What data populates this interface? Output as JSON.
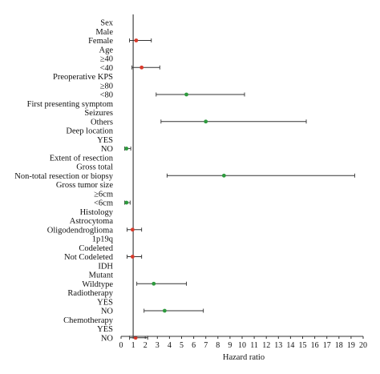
{
  "chart_data": {
    "type": "forest",
    "xlabel": "Hazard ratio",
    "xlim": [
      0,
      20
    ],
    "xticks": [
      0,
      1,
      2,
      3,
      4,
      5,
      6,
      7,
      8,
      9,
      10,
      11,
      12,
      13,
      14,
      15,
      16,
      17,
      18,
      19,
      20
    ],
    "reference_line": 1,
    "colors": {
      "significant": "#2e9a3e",
      "nonsignificant": "#d93a2b",
      "whisker": "#333333"
    },
    "rows": [
      {
        "label": "Sex"
      },
      {
        "label": "Male"
      },
      {
        "label": "Female",
        "hr": 1.25,
        "lo": 0.7,
        "hi": 2.5,
        "color": "nonsignificant"
      },
      {
        "label": "Age"
      },
      {
        "label": "≥40"
      },
      {
        "label": "<40",
        "hr": 1.7,
        "lo": 0.9,
        "hi": 3.2,
        "color": "nonsignificant"
      },
      {
        "label": "Preoperative KPS"
      },
      {
        "label": "≥80"
      },
      {
        "label": "<80",
        "hr": 5.4,
        "lo": 2.9,
        "hi": 10.2,
        "color": "significant"
      },
      {
        "label": "First presenting symptom"
      },
      {
        "label": "Seizures"
      },
      {
        "label": "Others",
        "hr": 7.0,
        "lo": 3.3,
        "hi": 15.3,
        "color": "significant"
      },
      {
        "label": "Deep location"
      },
      {
        "label": "YES"
      },
      {
        "label": "NO",
        "hr": 0.45,
        "lo": 0.3,
        "hi": 0.8,
        "color": "significant"
      },
      {
        "label": "Extent of resection"
      },
      {
        "label": "Gross total"
      },
      {
        "label": "Non-total resection or biopsy",
        "hr": 8.5,
        "lo": 3.8,
        "hi": 19.3,
        "color": "significant"
      },
      {
        "label": "Gross tumor size"
      },
      {
        "label": "≥6cm"
      },
      {
        "label": "<6cm",
        "hr": 0.45,
        "lo": 0.3,
        "hi": 0.75,
        "color": "significant"
      },
      {
        "label": "Histology"
      },
      {
        "label": "Astrocytoma"
      },
      {
        "label": "Oligodendroglioma",
        "hr": 0.95,
        "lo": 0.5,
        "hi": 1.7,
        "color": "nonsignificant"
      },
      {
        "label": "1p19q"
      },
      {
        "label": "Codeleted"
      },
      {
        "label": "Not Codeleted",
        "hr": 0.95,
        "lo": 0.5,
        "hi": 1.7,
        "color": "nonsignificant"
      },
      {
        "label": "IDH"
      },
      {
        "label": "Mutant"
      },
      {
        "label": "Wildtype",
        "hr": 2.7,
        "lo": 1.3,
        "hi": 5.4,
        "color": "significant"
      },
      {
        "label": "Radiotherapy"
      },
      {
        "label": "YES"
      },
      {
        "label": "NO",
        "hr": 3.6,
        "lo": 1.9,
        "hi": 6.8,
        "color": "significant"
      },
      {
        "label": "Chemotherapy"
      },
      {
        "label": "YES"
      },
      {
        "label": "NO",
        "hr": 1.2,
        "lo": 0.7,
        "hi": 2.2,
        "color": "nonsignificant"
      }
    ]
  }
}
